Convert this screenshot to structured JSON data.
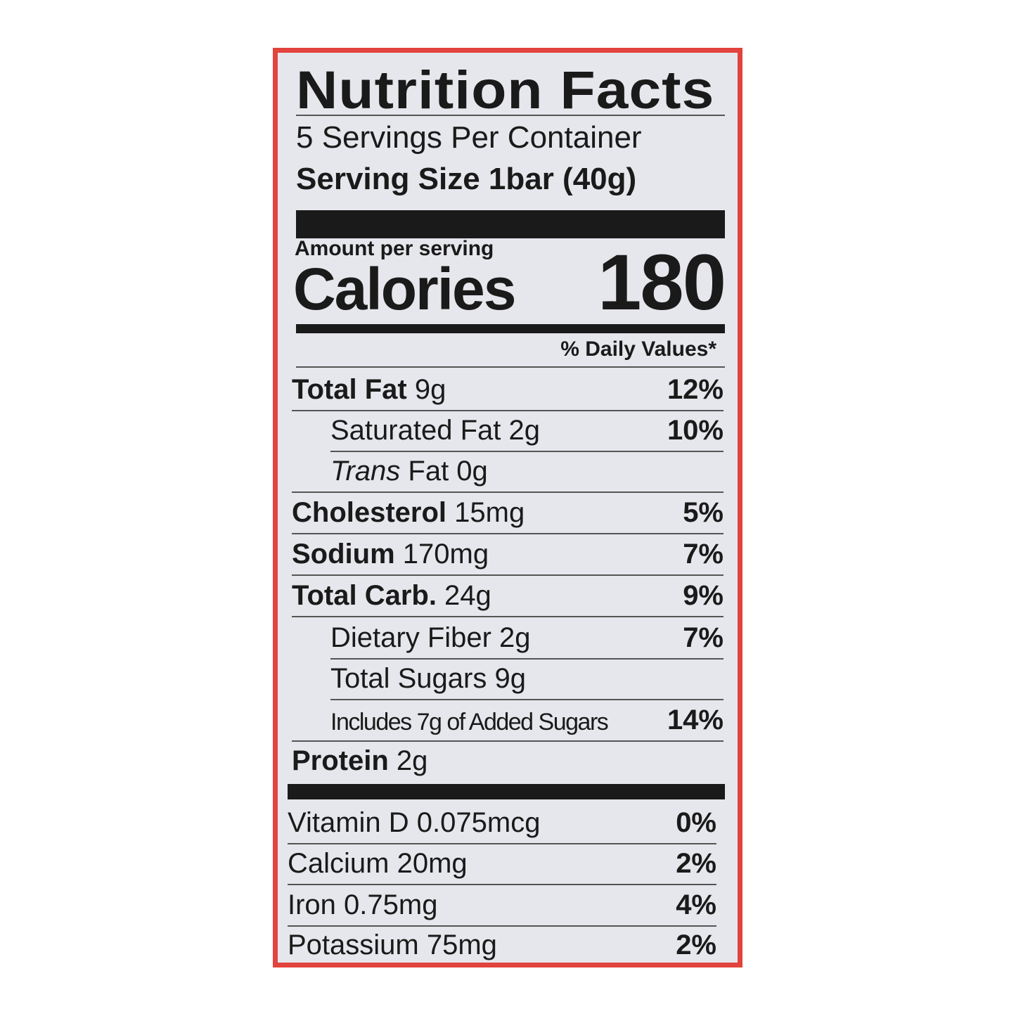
{
  "colors": {
    "border": "#e2433c",
    "background": "#e6e7ec",
    "text": "#1a1a1a"
  },
  "title": "Nutrition Facts",
  "servings_per_container": "5 Servings Per Container",
  "serving_size": "Serving Size 1bar (40g)",
  "amount_per_serving": "Amount per serving",
  "calories_label": "Calories",
  "calories_value": "180",
  "daily_values_header": "% Daily Values*",
  "nutrients": [
    {
      "label": "Total Fat",
      "amount": " 9g",
      "dv": "12%"
    },
    {
      "label": "Saturated Fat 2g",
      "amount": "",
      "dv": "10%"
    },
    {
      "label": "Trans",
      "amount": " Fat 0g",
      "dv": ""
    },
    {
      "label": "Cholesterol",
      "amount": " 15mg",
      "dv": "5%"
    },
    {
      "label": "Sodium",
      "amount": " 170mg",
      "dv": "7%"
    },
    {
      "label": "Total Carb.",
      "amount": " 24g",
      "dv": "9%"
    },
    {
      "label": "Dietary Fiber 2g",
      "amount": "",
      "dv": "7%"
    },
    {
      "label": "Total Sugars 9g",
      "amount": "",
      "dv": ""
    },
    {
      "label": "Includes 7g of Added Sugars",
      "amount": "",
      "dv": "14%"
    },
    {
      "label": "Protein",
      "amount": " 2g",
      "dv": ""
    }
  ],
  "vitamins": [
    {
      "label": "Vitamin D 0.075mcg",
      "dv": "0%"
    },
    {
      "label": "Calcium 20mg",
      "dv": "2%"
    },
    {
      "label": "Iron 0.75mg",
      "dv": "4%"
    },
    {
      "label": "Potassium 75mg",
      "dv": "2%"
    }
  ]
}
